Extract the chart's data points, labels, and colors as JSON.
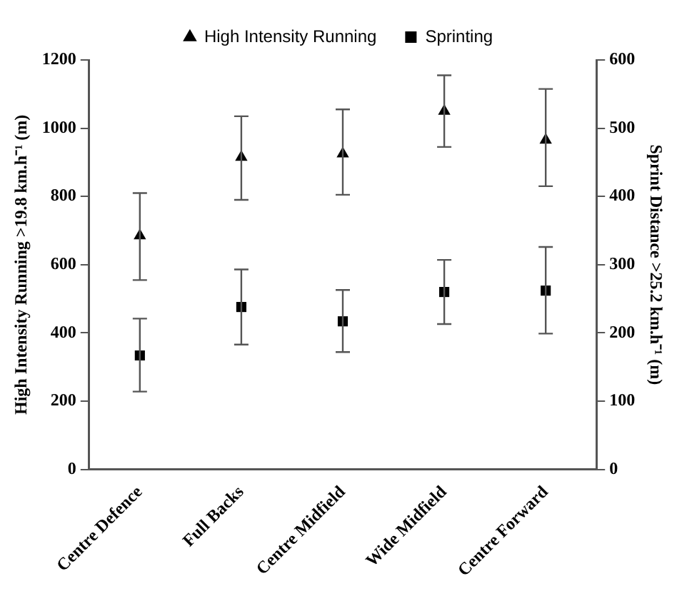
{
  "chart_data": {
    "type": "scatter",
    "categories": [
      "Centre Defence",
      "Full Backs",
      "Centre Midfield",
      "Wide Midfield",
      "Centre Forward"
    ],
    "series": [
      {
        "name": "High Intensity Running",
        "color": "#000000",
        "marker": "triangle",
        "x": [
          "Centre Defence",
          "Full Backs",
          "Centre Midfield",
          "Wide Midfield",
          "Centre Forward"
        ],
        "values": [
          685,
          915,
          925,
          1050,
          965
        ],
        "errors": [
          [
            555,
            810
          ],
          [
            790,
            1035
          ],
          [
            805,
            1055
          ],
          [
            945,
            1155
          ],
          [
            830,
            1115
          ]
        ]
      },
      {
        "name": "Sprinting",
        "color": "#000000",
        "marker": "square",
        "axis": "y2",
        "x": [
          "Centre Defence",
          "Full Backs",
          "Centre Midfield",
          "Wide Midfield",
          "Centre Forward"
        ],
        "values": [
          167,
          238,
          217,
          260,
          262
        ],
        "errors": [
          [
            114,
            221
          ],
          [
            183,
            293
          ],
          [
            172,
            263
          ],
          [
            213,
            307
          ],
          [
            199,
            326
          ]
        ]
      }
    ],
    "ylabel": "High Intensity Running >19.8 km.h⁻¹ (m)",
    "y2label": "Sprint Distance >25.2 km.h⁻¹ (m)",
    "ylim": [
      0,
      1200
    ],
    "yticks": [
      0,
      200,
      400,
      600,
      800,
      1000,
      1200
    ],
    "y2lim": [
      0,
      600
    ],
    "y2ticks": [
      0,
      100,
      200,
      300,
      400,
      500,
      600
    ],
    "grid": false,
    "legend": "top"
  }
}
